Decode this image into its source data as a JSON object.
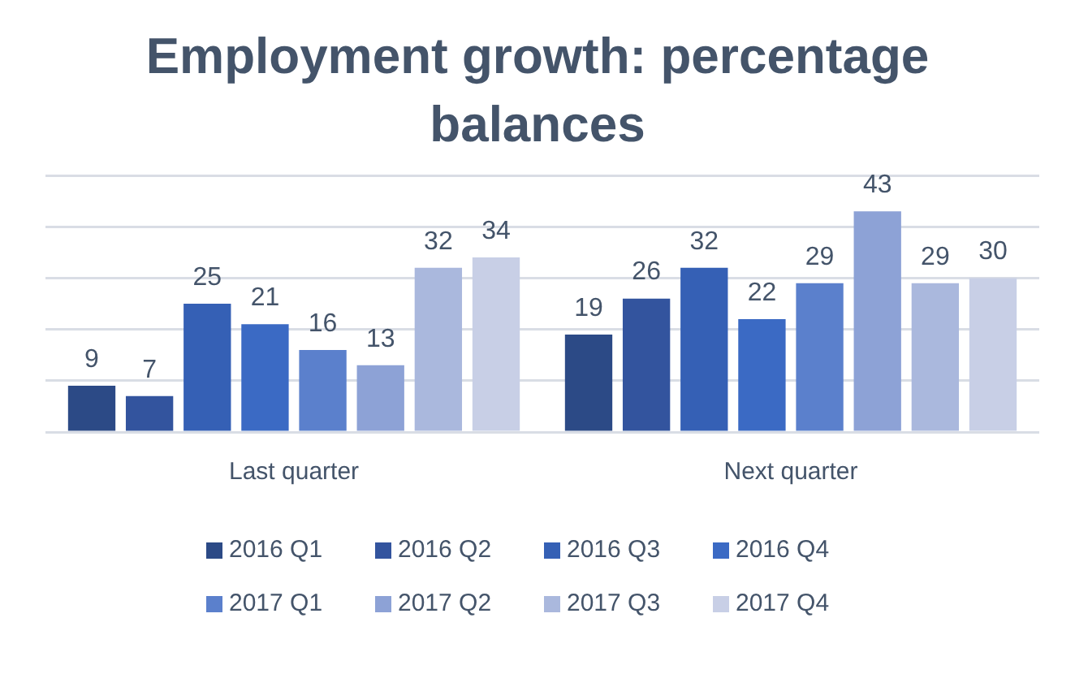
{
  "chart_data": {
    "type": "bar",
    "title": "Employment growth: percentage balances",
    "categories": [
      "Last quarter",
      "Next quarter"
    ],
    "series": [
      {
        "name": "2016 Q1",
        "color": "#2c4a86",
        "values": [
          9,
          19
        ]
      },
      {
        "name": "2016 Q2",
        "color": "#33549e",
        "values": [
          7,
          26
        ]
      },
      {
        "name": "2016 Q3",
        "color": "#3560b5",
        "values": [
          25,
          32
        ]
      },
      {
        "name": "2016 Q4",
        "color": "#3b6ac4",
        "values": [
          21,
          22
        ]
      },
      {
        "name": "2017 Q1",
        "color": "#5b80cc",
        "values": [
          16,
          29
        ]
      },
      {
        "name": "2017 Q2",
        "color": "#8da2d6",
        "values": [
          13,
          43
        ]
      },
      {
        "name": "2017 Q3",
        "color": "#aab8dd",
        "values": [
          32,
          29
        ]
      },
      {
        "name": "2017 Q4",
        "color": "#c8cfe6",
        "values": [
          34,
          30
        ]
      }
    ],
    "ylim": [
      0,
      50
    ],
    "yticks": [
      {
        "value": 0,
        "label": null
      },
      {
        "value": 10,
        "label": null
      },
      {
        "value": 20,
        "label": null
      },
      {
        "value": 30,
        "label": null
      },
      {
        "value": 40,
        "label": null
      },
      {
        "value": 50,
        "label": null
      }
    ],
    "tick_labels": "x",
    "grid": "y",
    "legend": "bottom",
    "data_labels": true
  }
}
